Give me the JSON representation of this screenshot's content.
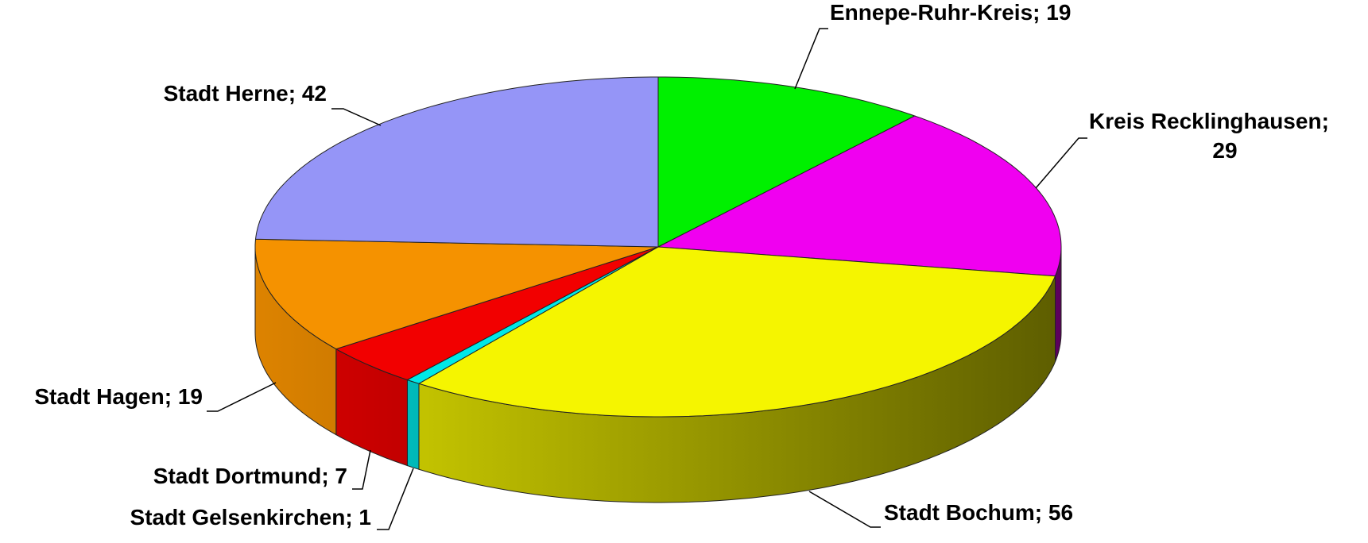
{
  "chart_data": {
    "type": "pie3d",
    "categories": [
      "Ennepe-Ruhr-Kreis",
      "Kreis Recklinghausen",
      "Stadt Bochum",
      "Stadt Gelsenkirchen",
      "Stadt Dortmund",
      "Stadt Hagen",
      "Stadt Herne"
    ],
    "values": [
      19,
      29,
      56,
      1,
      7,
      19,
      42
    ],
    "colors": [
      "#00f000",
      "#f000f0",
      "#f5f500",
      "#00e8e8",
      "#f20000",
      "#f59200",
      "#9595f7"
    ],
    "label_separator": "; "
  }
}
